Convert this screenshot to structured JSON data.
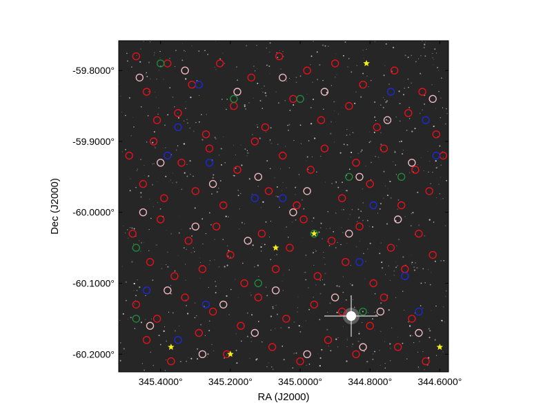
{
  "chart_data": {
    "type": "scatter",
    "title": "",
    "xlabel": "RA (J2000)",
    "ylabel": "Dec (J2000)",
    "xlim": [
      345.52,
      344.575
    ],
    "ylim": [
      -60.225,
      -59.758
    ],
    "x_ticks": [
      {
        "value": 345.4,
        "label": "345.4000°"
      },
      {
        "value": 345.2,
        "label": "345.2000°"
      },
      {
        "value": 345.0,
        "label": "345.0000°"
      },
      {
        "value": 344.8,
        "label": "344.8000°"
      },
      {
        "value": 344.6,
        "label": "344.6000°"
      }
    ],
    "y_ticks": [
      {
        "value": -59.8,
        "label": "-59.8000°"
      },
      {
        "value": -59.9,
        "label": "-59.9000°"
      },
      {
        "value": -60.0,
        "label": "-60.0000°"
      },
      {
        "value": -60.1,
        "label": "-60.1000°"
      },
      {
        "value": -60.2,
        "label": "-60.2000°"
      }
    ],
    "background": "greyscale sky image",
    "grid": false,
    "legend": "none",
    "series": [
      {
        "marker": "circle",
        "color": "#e8101a",
        "points": [
          [
            345.47,
            -59.78
          ],
          [
            345.44,
            -59.83
          ],
          [
            345.41,
            -59.87
          ],
          [
            345.38,
            -59.79
          ],
          [
            345.35,
            -59.86
          ],
          [
            345.31,
            -59.82
          ],
          [
            345.27,
            -59.89
          ],
          [
            345.23,
            -59.79
          ],
          [
            345.19,
            -59.85
          ],
          [
            345.14,
            -59.81
          ],
          [
            345.1,
            -59.88
          ],
          [
            345.06,
            -59.78
          ],
          [
            345.02,
            -59.84
          ],
          [
            344.98,
            -59.8
          ],
          [
            344.94,
            -59.87
          ],
          [
            344.9,
            -59.79
          ],
          [
            344.86,
            -59.85
          ],
          [
            344.82,
            -59.82
          ],
          [
            344.78,
            -59.88
          ],
          [
            344.73,
            -59.8
          ],
          [
            344.69,
            -59.86
          ],
          [
            344.65,
            -59.83
          ],
          [
            344.61,
            -59.89
          ],
          [
            345.49,
            -59.92
          ],
          [
            345.45,
            -59.96
          ],
          [
            345.42,
            -59.9
          ],
          [
            345.39,
            -59.98
          ],
          [
            345.34,
            -59.93
          ],
          [
            345.3,
            -59.97
          ],
          [
            345.26,
            -59.91
          ],
          [
            345.22,
            -59.99
          ],
          [
            345.18,
            -59.94
          ],
          [
            345.13,
            -59.9
          ],
          [
            345.09,
            -59.97
          ],
          [
            345.05,
            -59.92
          ],
          [
            345.01,
            -59.99
          ],
          [
            344.97,
            -59.94
          ],
          [
            344.93,
            -59.91
          ],
          [
            344.88,
            -59.98
          ],
          [
            344.84,
            -59.93
          ],
          [
            344.8,
            -59.96
          ],
          [
            344.76,
            -59.91
          ],
          [
            344.71,
            -59.99
          ],
          [
            344.67,
            -59.94
          ],
          [
            344.63,
            -59.97
          ],
          [
            344.59,
            -59.92
          ],
          [
            345.48,
            -60.03
          ],
          [
            345.43,
            -60.07
          ],
          [
            345.4,
            -60.01
          ],
          [
            345.36,
            -60.09
          ],
          [
            345.32,
            -60.04
          ],
          [
            345.28,
            -60.08
          ],
          [
            345.24,
            -60.02
          ],
          [
            345.2,
            -60.06
          ],
          [
            345.16,
            -60.1
          ],
          [
            345.11,
            -60.03
          ],
          [
            345.07,
            -60.08
          ],
          [
            345.03,
            -60.05
          ],
          [
            344.99,
            -60.01
          ],
          [
            344.95,
            -60.09
          ],
          [
            344.91,
            -60.04
          ],
          [
            344.87,
            -60.07
          ],
          [
            344.83,
            -60.02
          ],
          [
            344.79,
            -60.1
          ],
          [
            344.74,
            -60.05
          ],
          [
            344.7,
            -60.08
          ],
          [
            344.66,
            -60.03
          ],
          [
            344.62,
            -60.06
          ],
          [
            345.47,
            -60.13
          ],
          [
            345.44,
            -60.18
          ],
          [
            345.41,
            -60.15
          ],
          [
            345.37,
            -60.21
          ],
          [
            345.33,
            -60.12
          ],
          [
            345.29,
            -60.17
          ],
          [
            345.25,
            -60.14
          ],
          [
            345.21,
            -60.2
          ],
          [
            345.17,
            -60.16
          ],
          [
            345.12,
            -60.12
          ],
          [
            345.08,
            -60.19
          ],
          [
            345.04,
            -60.15
          ],
          [
            345.0,
            -60.21
          ],
          [
            344.96,
            -60.13
          ],
          [
            344.92,
            -60.18
          ],
          [
            344.88,
            -60.14
          ],
          [
            344.84,
            -60.2
          ],
          [
            344.8,
            -60.16
          ],
          [
            344.76,
            -60.12
          ],
          [
            344.72,
            -60.19
          ],
          [
            344.68,
            -60.15
          ],
          [
            344.64,
            -60.21
          ]
        ]
      },
      {
        "marker": "circle",
        "color": "#f0b8c0",
        "points": [
          [
            345.46,
            -59.81
          ],
          [
            345.33,
            -59.8
          ],
          [
            345.18,
            -59.83
          ],
          [
            345.05,
            -59.81
          ],
          [
            344.93,
            -59.83
          ],
          [
            344.75,
            -59.87
          ],
          [
            344.62,
            -59.84
          ],
          [
            345.4,
            -59.93
          ],
          [
            345.25,
            -59.96
          ],
          [
            345.12,
            -59.95
          ],
          [
            344.98,
            -59.97
          ],
          [
            344.83,
            -59.95
          ],
          [
            344.68,
            -59.93
          ],
          [
            345.45,
            -60.0
          ],
          [
            345.3,
            -60.02
          ],
          [
            345.15,
            -60.04
          ],
          [
            345.02,
            -60.0
          ],
          [
            344.86,
            -60.03
          ],
          [
            344.72,
            -60.01
          ],
          [
            345.38,
            -60.11
          ],
          [
            345.22,
            -60.13
          ],
          [
            345.07,
            -60.11
          ],
          [
            344.9,
            -60.12
          ],
          [
            344.77,
            -60.14
          ],
          [
            345.43,
            -60.16
          ],
          [
            345.28,
            -60.2
          ],
          [
            345.13,
            -60.17
          ],
          [
            344.98,
            -60.2
          ],
          [
            344.82,
            -60.19
          ],
          [
            344.66,
            -60.17
          ]
        ]
      },
      {
        "marker": "circle",
        "color": "#1a2bd6",
        "points": [
          [
            345.35,
            -59.88
          ],
          [
            345.29,
            -59.82
          ],
          [
            345.38,
            -59.92
          ],
          [
            345.26,
            -59.93
          ],
          [
            345.13,
            -59.98
          ],
          [
            345.05,
            -59.98
          ],
          [
            344.79,
            -59.99
          ],
          [
            344.74,
            -59.83
          ],
          [
            344.64,
            -59.87
          ],
          [
            344.61,
            -59.92
          ],
          [
            345.27,
            -60.13
          ],
          [
            345.35,
            -60.18
          ],
          [
            344.83,
            -60.07
          ],
          [
            344.7,
            -60.09
          ],
          [
            344.66,
            -60.14
          ],
          [
            345.44,
            -60.11
          ]
        ]
      },
      {
        "marker": "circle",
        "color": "#1e8a3c",
        "points": [
          [
            345.4,
            -59.79
          ],
          [
            345.19,
            -59.84
          ],
          [
            345.0,
            -59.84
          ],
          [
            344.86,
            -59.95
          ],
          [
            345.47,
            -60.05
          ],
          [
            345.12,
            -60.1
          ],
          [
            344.96,
            -60.03
          ],
          [
            344.82,
            -60.14
          ],
          [
            344.71,
            -59.95
          ],
          [
            345.47,
            -60.15
          ]
        ]
      },
      {
        "marker": "star",
        "color": "#f5f01a",
        "points": [
          [
            344.81,
            -59.79
          ],
          [
            345.07,
            -60.05
          ],
          [
            344.96,
            -60.03
          ],
          [
            345.37,
            -60.19
          ],
          [
            345.2,
            -60.2
          ],
          [
            344.6,
            -60.19
          ]
        ]
      }
    ]
  }
}
